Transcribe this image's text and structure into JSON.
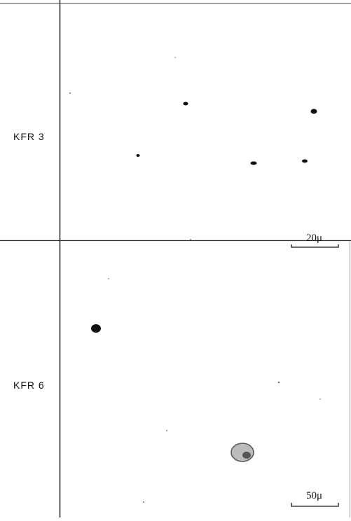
{
  "panels": [
    {
      "label": "KFR 3",
      "scale": "20μ"
    },
    {
      "label": "KFR 6",
      "scale": "50μ"
    }
  ]
}
